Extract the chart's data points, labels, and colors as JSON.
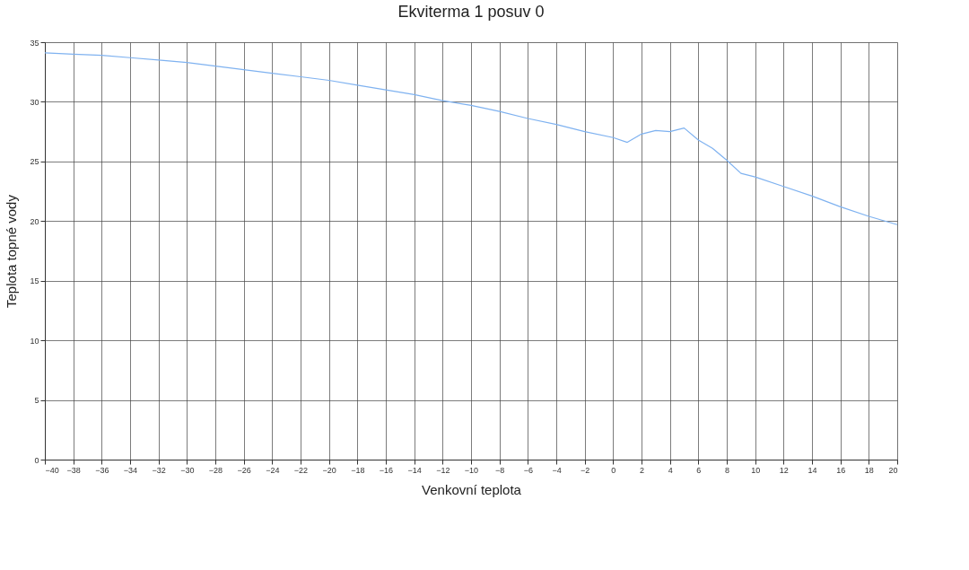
{
  "chart_data": {
    "type": "line",
    "title": "Ekviterma 1 posuv 0",
    "xlabel": "Venkovní teplota",
    "ylabel": "Teplota topné vody",
    "x": [
      -40,
      -38,
      -36,
      -34,
      -32,
      -30,
      -28,
      -26,
      -24,
      -22,
      -20,
      -18,
      -16,
      -14,
      -12,
      -10,
      -8,
      -6,
      -4,
      -2,
      0,
      1,
      2,
      3,
      4,
      5,
      6,
      7,
      8,
      9,
      10,
      12,
      14,
      16,
      18,
      20
    ],
    "series": [
      {
        "color": "#7fb2f0",
        "values": [
          34.1,
          34.0,
          33.9,
          33.7,
          33.5,
          33.3,
          33.0,
          32.7,
          32.4,
          32.1,
          31.8,
          31.4,
          31.0,
          30.6,
          30.1,
          29.7,
          29.2,
          28.6,
          28.1,
          27.5,
          27.0,
          26.6,
          27.3,
          27.6,
          27.5,
          27.8,
          26.8,
          26.1,
          25.1,
          24.0,
          23.7,
          22.9,
          22.1,
          21.2,
          20.4,
          19.7
        ]
      }
    ],
    "xlim": [
      -40,
      20
    ],
    "xticks": [
      -40,
      -38,
      -36,
      -34,
      -32,
      -30,
      -28,
      -26,
      -24,
      -22,
      -20,
      -18,
      -16,
      -14,
      -12,
      -10,
      -8,
      -6,
      -4,
      -2,
      0,
      2,
      4,
      6,
      8,
      10,
      12,
      14,
      16,
      18,
      20
    ],
    "ylim": [
      0,
      35
    ],
    "yticks": [
      0,
      5,
      10,
      15,
      20,
      25,
      30,
      35
    ],
    "grid": true,
    "marker": "none",
    "line_style": "solid"
  }
}
